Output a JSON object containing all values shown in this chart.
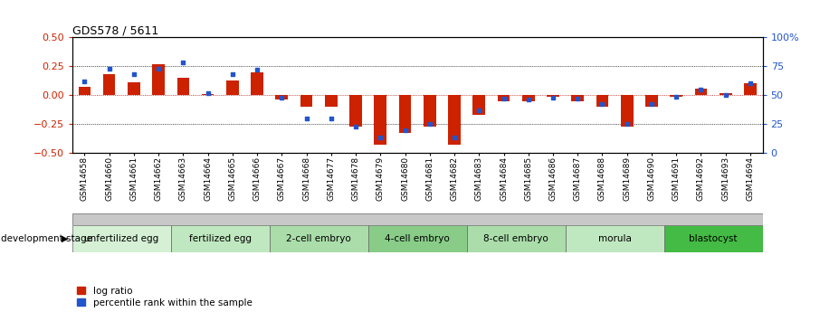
{
  "title": "GDS578 / 5611",
  "samples": [
    "GSM14658",
    "GSM14660",
    "GSM14661",
    "GSM14662",
    "GSM14663",
    "GSM14664",
    "GSM14665",
    "GSM14666",
    "GSM14667",
    "GSM14668",
    "GSM14677",
    "GSM14678",
    "GSM14679",
    "GSM14680",
    "GSM14681",
    "GSM14682",
    "GSM14683",
    "GSM14684",
    "GSM14685",
    "GSM14686",
    "GSM14687",
    "GSM14688",
    "GSM14689",
    "GSM14690",
    "GSM14691",
    "GSM14692",
    "GSM14693",
    "GSM14694"
  ],
  "log_ratio": [
    0.07,
    0.18,
    0.11,
    0.27,
    0.15,
    0.01,
    0.13,
    0.2,
    -0.04,
    -0.1,
    -0.1,
    -0.27,
    -0.43,
    -0.33,
    -0.27,
    -0.43,
    -0.17,
    -0.05,
    -0.05,
    -0.01,
    -0.05,
    -0.1,
    -0.27,
    -0.1,
    -0.01,
    0.06,
    0.02,
    0.1
  ],
  "percentile_rank": [
    62,
    73,
    68,
    73,
    78,
    52,
    68,
    72,
    48,
    30,
    30,
    23,
    13,
    20,
    25,
    13,
    37,
    47,
    46,
    48,
    47,
    42,
    25,
    42,
    49,
    55,
    50,
    60
  ],
  "stages": [
    {
      "label": "unfertilized egg",
      "start": 0,
      "end": 4
    },
    {
      "label": "fertilized egg",
      "start": 4,
      "end": 8
    },
    {
      "label": "2-cell embryo",
      "start": 8,
      "end": 12
    },
    {
      "label": "4-cell embryo",
      "start": 12,
      "end": 16
    },
    {
      "label": "8-cell embryo",
      "start": 16,
      "end": 20
    },
    {
      "label": "morula",
      "start": 20,
      "end": 24
    },
    {
      "label": "blastocyst",
      "start": 24,
      "end": 28
    }
  ],
  "stage_colors": [
    "#d5f0d5",
    "#c0e8c0",
    "#aaddaa",
    "#88cc88",
    "#aaddaa",
    "#c0e8c0",
    "#44bb44"
  ],
  "ylim": [
    -0.5,
    0.5
  ],
  "y2lim": [
    0,
    100
  ],
  "yticks": [
    -0.5,
    -0.25,
    0.0,
    0.25,
    0.5
  ],
  "y2ticks": [
    0,
    25,
    50,
    75,
    100
  ],
  "y2ticklabels": [
    "0",
    "25",
    "50",
    "75",
    "100%"
  ],
  "hlines": [
    0.25,
    0.0,
    -0.25
  ],
  "bar_color": "#cc2200",
  "dot_color": "#2255cc",
  "bar_width": 0.5,
  "legend_labels": [
    "log ratio",
    "percentile rank within the sample"
  ],
  "dev_stage_label": "development stage",
  "header_color": "#c8c8c8",
  "title_fontsize": 9,
  "xlabel_fontsize": 6.5,
  "ylabel_fontsize": 8,
  "stage_fontsize": 7.5
}
